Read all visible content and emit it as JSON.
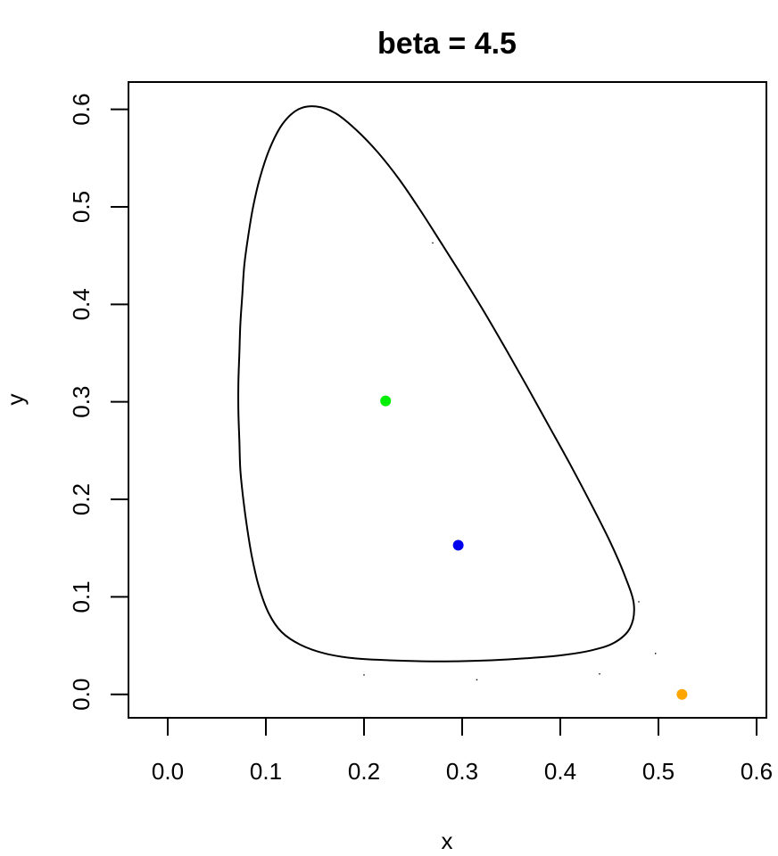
{
  "chart_data": {
    "type": "scatter",
    "title": "beta = 4.5",
    "xlabel": "x",
    "ylabel": "y",
    "xlim": [
      -0.04,
      0.61
    ],
    "ylim": [
      -0.024,
      0.628
    ],
    "x_ticks": [
      0.0,
      0.1,
      0.2,
      0.3,
      0.4,
      0.5,
      0.6
    ],
    "x_tick_labels": [
      "0.0",
      "0.1",
      "0.2",
      "0.3",
      "0.4",
      "0.5",
      "0.6"
    ],
    "y_ticks": [
      0.0,
      0.1,
      0.2,
      0.3,
      0.4,
      0.5,
      0.6
    ],
    "y_tick_labels": [
      "0.0",
      "0.1",
      "0.2",
      "0.3",
      "0.4",
      "0.5",
      "0.6"
    ],
    "grid": false,
    "legend": false,
    "curve": {
      "color": "#000000",
      "closed": true,
      "points": [
        [
          0.151,
          0.603
        ],
        [
          0.171,
          0.596
        ],
        [
          0.192,
          0.579
        ],
        [
          0.214,
          0.556
        ],
        [
          0.236,
          0.528
        ],
        [
          0.257,
          0.497
        ],
        [
          0.278,
          0.464
        ],
        [
          0.3,
          0.429
        ],
        [
          0.322,
          0.393
        ],
        [
          0.344,
          0.355
        ],
        [
          0.366,
          0.316
        ],
        [
          0.388,
          0.276
        ],
        [
          0.41,
          0.236
        ],
        [
          0.431,
          0.196
        ],
        [
          0.451,
          0.156
        ],
        [
          0.466,
          0.121
        ],
        [
          0.475,
          0.092
        ],
        [
          0.471,
          0.068
        ],
        [
          0.455,
          0.053
        ],
        [
          0.431,
          0.045
        ],
        [
          0.4,
          0.04
        ],
        [
          0.365,
          0.037
        ],
        [
          0.33,
          0.035
        ],
        [
          0.295,
          0.034
        ],
        [
          0.26,
          0.034
        ],
        [
          0.225,
          0.035
        ],
        [
          0.19,
          0.037
        ],
        [
          0.16,
          0.042
        ],
        [
          0.135,
          0.051
        ],
        [
          0.116,
          0.064
        ],
        [
          0.103,
          0.083
        ],
        [
          0.093,
          0.11
        ],
        [
          0.086,
          0.14
        ],
        [
          0.081,
          0.17
        ],
        [
          0.077,
          0.2
        ],
        [
          0.074,
          0.23
        ],
        [
          0.073,
          0.26
        ],
        [
          0.072,
          0.29
        ],
        [
          0.072,
          0.32
        ],
        [
          0.073,
          0.35
        ],
        [
          0.074,
          0.38
        ],
        [
          0.076,
          0.41
        ],
        [
          0.078,
          0.44
        ],
        [
          0.082,
          0.47
        ],
        [
          0.087,
          0.5
        ],
        [
          0.094,
          0.53
        ],
        [
          0.104,
          0.56
        ],
        [
          0.117,
          0.585
        ],
        [
          0.133,
          0.6
        ]
      ]
    },
    "points": [
      {
        "x": 0.222,
        "y": 0.301,
        "color": "#00ee00",
        "size": "large"
      },
      {
        "x": 0.296,
        "y": 0.153,
        "color": "#0000ee",
        "size": "large"
      },
      {
        "x": 0.524,
        "y": 0.0,
        "color": "#ffa500",
        "size": "large"
      },
      {
        "x": 0.27,
        "y": 0.463,
        "color": "#000000",
        "size": "dot"
      },
      {
        "x": 0.48,
        "y": 0.095,
        "color": "#000000",
        "size": "dot"
      },
      {
        "x": 0.497,
        "y": 0.042,
        "color": "#000000",
        "size": "dot"
      },
      {
        "x": 0.44,
        "y": 0.021,
        "color": "#000000",
        "size": "dot"
      },
      {
        "x": 0.315,
        "y": 0.015,
        "color": "#000000",
        "size": "dot"
      },
      {
        "x": 0.2,
        "y": 0.02,
        "color": "#000000",
        "size": "dot"
      }
    ]
  }
}
